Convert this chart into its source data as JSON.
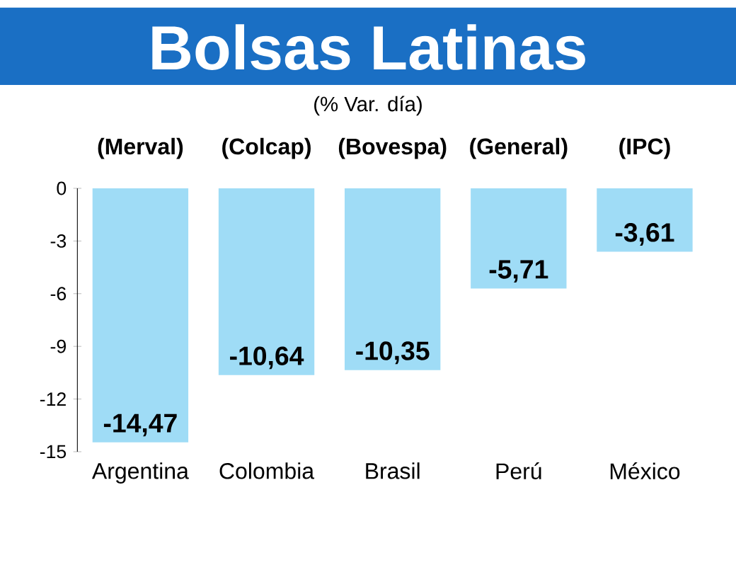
{
  "chart_data": {
    "type": "bar",
    "title": "Bolsas Latinas",
    "subtitle": "(% Var. día)",
    "categories": [
      "Argentina",
      "Colombia",
      "Brasil",
      "Perú",
      "México"
    ],
    "values": [
      -14.47,
      -10.64,
      -10.35,
      -5.71,
      -3.61
    ],
    "value_labels": [
      "-14,47",
      "-10,64",
      "-10,35",
      "-5,71",
      "-3,61"
    ],
    "color": "#9fdcf6",
    "ylim": [
      -15,
      0
    ],
    "yticks": [
      -15,
      -12,
      -9,
      -6,
      -3,
      0
    ],
    "annotations": [
      "(Merval)",
      "(Colcap)",
      "(Bovespa)",
      "(General)",
      "(IPC)"
    ]
  }
}
